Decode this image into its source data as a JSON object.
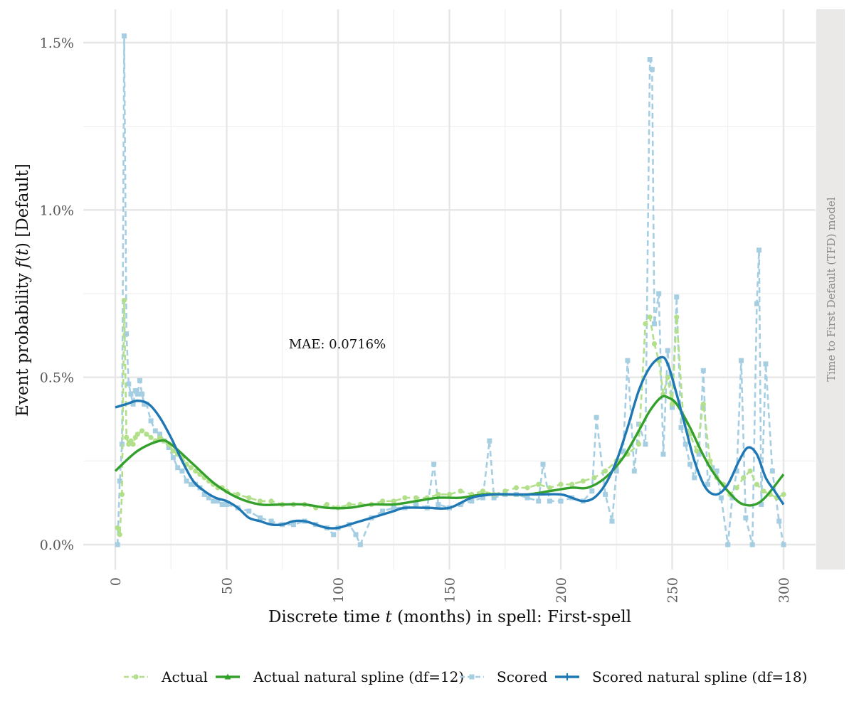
{
  "chart_data": {
    "type": "line",
    "xlabel_prefix": "Discrete time ",
    "xlabel_var": "t",
    "xlabel_suffix": " (months) in spell: First-spell",
    "ylabel_prefix": "Event probability ",
    "ylabel_func": "f",
    "ylabel_arg": "t",
    "ylabel_suffix": " [Default]",
    "facet_label": "Time to First Default (TFD) model",
    "annotation": "MAE: 0.0716%",
    "xlim": [
      0,
      300
    ],
    "ylim": [
      0,
      1.5
    ],
    "x_ticks": [
      0,
      50,
      100,
      150,
      200,
      250,
      300
    ],
    "x_tick_labels": [
      "0",
      "50",
      "100",
      "150",
      "200",
      "250",
      "300"
    ],
    "y_ticks": [
      0,
      0.5,
      1.0,
      1.5
    ],
    "y_tick_labels": [
      "0.0%",
      "0.5%",
      "1.0%",
      "1.5%"
    ],
    "y_unit": "percent",
    "grid": true,
    "legend_position": "bottom",
    "colors": {
      "actual": "#b2df8a",
      "actual_spline": "#33a02c",
      "scored": "#a6cee3",
      "scored_spline": "#1f78b4",
      "facet_strip": "#ebe8e8",
      "grid": "#e6e6e6"
    },
    "series": [
      {
        "name": "Actual",
        "style": "dashed-points",
        "x": [
          1,
          2,
          3,
          4,
          5,
          6,
          7,
          8,
          9,
          10,
          12,
          14,
          16,
          18,
          20,
          22,
          24,
          26,
          28,
          30,
          32,
          34,
          36,
          38,
          40,
          42,
          44,
          46,
          48,
          50,
          55,
          60,
          65,
          70,
          75,
          80,
          85,
          90,
          95,
          100,
          105,
          110,
          115,
          120,
          125,
          130,
          135,
          140,
          145,
          150,
          155,
          160,
          165,
          170,
          175,
          180,
          185,
          190,
          195,
          200,
          205,
          210,
          215,
          220,
          225,
          230,
          235,
          238,
          240,
          242,
          244,
          246,
          248,
          250,
          252,
          255,
          258,
          261,
          264,
          267,
          270,
          273,
          276,
          279,
          282,
          285,
          288,
          291,
          294,
          297,
          300
        ],
        "y": [
          0.05,
          0.03,
          0.15,
          0.73,
          0.32,
          0.3,
          0.31,
          0.3,
          0.32,
          0.33,
          0.34,
          0.33,
          0.32,
          0.31,
          0.32,
          0.31,
          0.3,
          0.28,
          0.27,
          0.26,
          0.24,
          0.23,
          0.22,
          0.21,
          0.2,
          0.19,
          0.18,
          0.17,
          0.17,
          0.16,
          0.15,
          0.14,
          0.13,
          0.13,
          0.12,
          0.12,
          0.12,
          0.11,
          0.12,
          0.11,
          0.12,
          0.12,
          0.12,
          0.13,
          0.13,
          0.14,
          0.14,
          0.14,
          0.15,
          0.15,
          0.16,
          0.15,
          0.16,
          0.15,
          0.16,
          0.17,
          0.17,
          0.18,
          0.17,
          0.18,
          0.18,
          0.19,
          0.2,
          0.22,
          0.25,
          0.27,
          0.3,
          0.66,
          0.68,
          0.6,
          0.55,
          0.45,
          0.5,
          0.42,
          0.68,
          0.38,
          0.33,
          0.28,
          0.42,
          0.25,
          0.2,
          0.18,
          0.15,
          0.17,
          0.2,
          0.22,
          0.18,
          0.16,
          0.15,
          0.14,
          0.15
        ]
      },
      {
        "name": "Actual natural spline (df=12)",
        "style": "solid",
        "x": [
          0,
          10,
          20,
          25,
          35,
          45,
          55,
          65,
          75,
          85,
          95,
          105,
          115,
          125,
          135,
          145,
          155,
          165,
          175,
          185,
          195,
          205,
          212,
          220,
          228,
          235,
          240,
          245,
          248,
          252,
          258,
          263,
          268,
          275,
          282,
          290,
          300
        ],
        "y": [
          0.22,
          0.28,
          0.31,
          0.3,
          0.24,
          0.18,
          0.14,
          0.12,
          0.12,
          0.12,
          0.11,
          0.11,
          0.12,
          0.12,
          0.13,
          0.14,
          0.14,
          0.15,
          0.15,
          0.15,
          0.16,
          0.17,
          0.17,
          0.2,
          0.26,
          0.34,
          0.4,
          0.44,
          0.44,
          0.42,
          0.35,
          0.28,
          0.22,
          0.16,
          0.12,
          0.13,
          0.21
        ]
      },
      {
        "name": "Scored",
        "style": "dashed-squares",
        "x": [
          1,
          2,
          3,
          4,
          5,
          6,
          7,
          8,
          9,
          10,
          11,
          12,
          13,
          14,
          16,
          18,
          20,
          22,
          24,
          26,
          28,
          30,
          32,
          34,
          36,
          38,
          40,
          42,
          44,
          46,
          48,
          50,
          55,
          60,
          65,
          70,
          75,
          80,
          85,
          90,
          95,
          98,
          100,
          105,
          108,
          110,
          115,
          120,
          125,
          130,
          135,
          140,
          143,
          145,
          150,
          155,
          160,
          165,
          168,
          170,
          175,
          180,
          185,
          190,
          192,
          195,
          200,
          205,
          210,
          214,
          216,
          220,
          223,
          225,
          228,
          230,
          233,
          235,
          238,
          240,
          241,
          242,
          244,
          246,
          248,
          250,
          252,
          254,
          256,
          258,
          260,
          262,
          264,
          266,
          268,
          270,
          272,
          275,
          277,
          279,
          281,
          283,
          286,
          288,
          289,
          290,
          292,
          295,
          298,
          300
        ],
        "y": [
          0.0,
          0.19,
          0.3,
          1.52,
          0.63,
          0.48,
          0.45,
          0.42,
          0.46,
          0.45,
          0.49,
          0.45,
          0.42,
          0.42,
          0.37,
          0.34,
          0.33,
          0.31,
          0.29,
          0.26,
          0.23,
          0.22,
          0.19,
          0.18,
          0.18,
          0.17,
          0.15,
          0.14,
          0.13,
          0.13,
          0.12,
          0.12,
          0.11,
          0.1,
          0.08,
          0.07,
          0.06,
          0.06,
          0.07,
          0.06,
          0.05,
          0.03,
          0.05,
          0.06,
          0.03,
          0.0,
          0.08,
          0.1,
          0.11,
          0.11,
          0.12,
          0.11,
          0.24,
          0.12,
          0.11,
          0.12,
          0.13,
          0.14,
          0.31,
          0.14,
          0.15,
          0.15,
          0.14,
          0.13,
          0.24,
          0.13,
          0.13,
          0.14,
          0.13,
          0.16,
          0.38,
          0.15,
          0.07,
          0.22,
          0.28,
          0.55,
          0.22,
          0.36,
          0.3,
          1.45,
          1.42,
          0.66,
          0.75,
          0.27,
          0.58,
          0.41,
          0.74,
          0.35,
          0.3,
          0.24,
          0.2,
          0.27,
          0.52,
          0.18,
          0.23,
          0.22,
          0.14,
          0.0,
          0.14,
          0.22,
          0.55,
          0.08,
          0.0,
          0.72,
          0.88,
          0.12,
          0.54,
          0.22,
          0.07,
          0.0
        ]
      },
      {
        "name": "Scored natural spline (df=18)",
        "style": "solid",
        "x": [
          0,
          5,
          10,
          15,
          20,
          25,
          30,
          35,
          40,
          45,
          50,
          55,
          60,
          65,
          70,
          75,
          80,
          85,
          90,
          95,
          100,
          105,
          110,
          115,
          120,
          125,
          130,
          140,
          150,
          160,
          170,
          180,
          190,
          200,
          205,
          210,
          215,
          220,
          225,
          230,
          235,
          240,
          245,
          248,
          252,
          256,
          260,
          265,
          270,
          275,
          280,
          284,
          288,
          292,
          296,
          300
        ],
        "y": [
          0.41,
          0.42,
          0.43,
          0.42,
          0.38,
          0.32,
          0.25,
          0.19,
          0.16,
          0.14,
          0.13,
          0.11,
          0.08,
          0.07,
          0.06,
          0.06,
          0.07,
          0.07,
          0.06,
          0.05,
          0.05,
          0.06,
          0.07,
          0.08,
          0.09,
          0.1,
          0.11,
          0.11,
          0.11,
          0.14,
          0.15,
          0.15,
          0.15,
          0.15,
          0.14,
          0.13,
          0.14,
          0.18,
          0.25,
          0.35,
          0.46,
          0.53,
          0.56,
          0.54,
          0.45,
          0.35,
          0.25,
          0.17,
          0.15,
          0.18,
          0.25,
          0.29,
          0.27,
          0.2,
          0.16,
          0.12
        ]
      }
    ]
  }
}
